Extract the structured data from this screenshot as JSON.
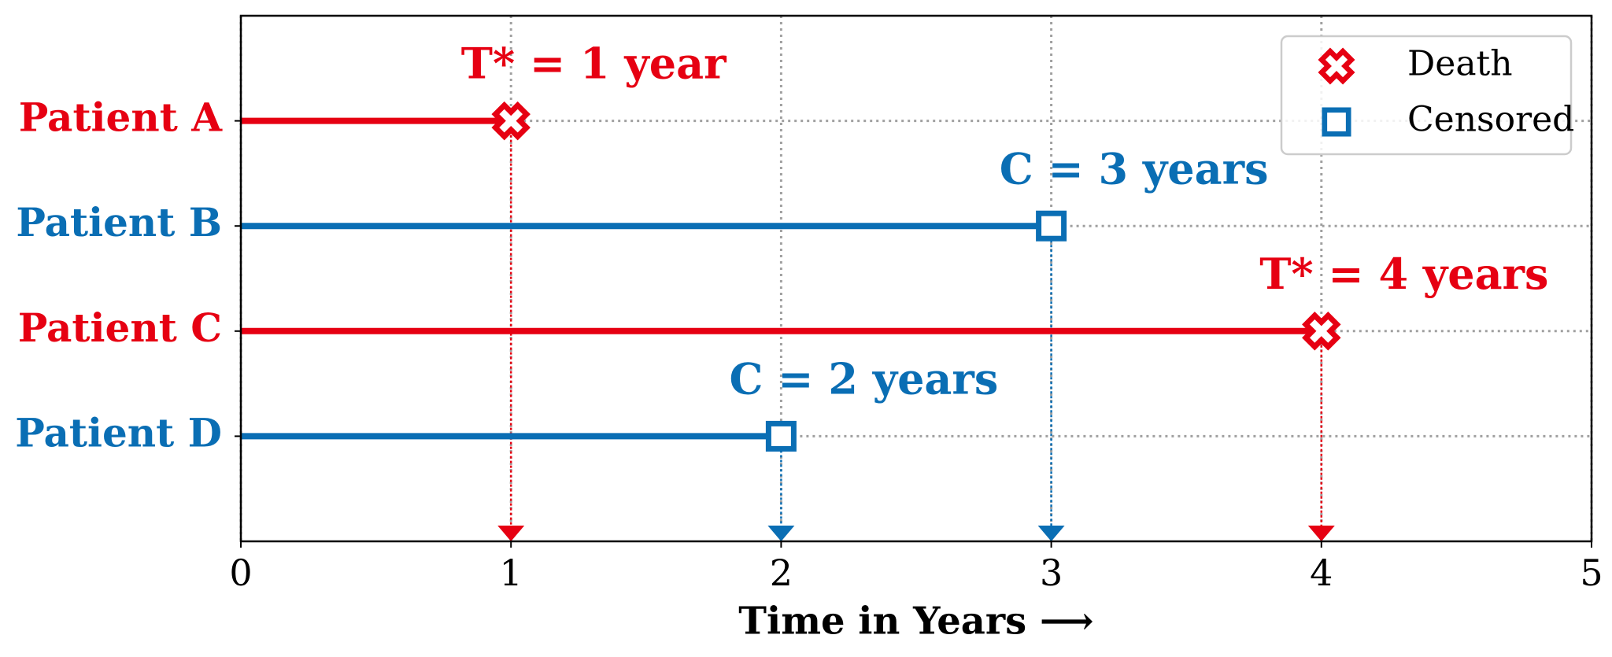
{
  "chart_data": {
    "type": "timeline",
    "series": [
      {
        "name": "Patient A",
        "color": "#e60012",
        "value": 1,
        "marker": "x",
        "annotation": "T* = 1 year"
      },
      {
        "name": "Patient B",
        "color": "#0a6eb4",
        "value": 3,
        "marker": "square",
        "annotation": "C = 3 years"
      },
      {
        "name": "Patient C",
        "color": "#e60012",
        "value": 4,
        "marker": "x",
        "annotation": "T* = 4 years"
      },
      {
        "name": "Patient D",
        "color": "#0a6eb4",
        "value": 2,
        "marker": "square",
        "annotation": "C = 2 years"
      }
    ],
    "legend": [
      {
        "name": "Death",
        "color": "#e60012",
        "marker": "x"
      },
      {
        "name": "Censored",
        "color": "#0a6eb4",
        "marker": "square"
      }
    ],
    "legend_position": "upper right",
    "xlabel": "Time in Years ⟶",
    "xlim": [
      0,
      5
    ],
    "xticks": [
      0,
      1,
      2,
      3,
      4,
      5
    ],
    "grid": true
  }
}
